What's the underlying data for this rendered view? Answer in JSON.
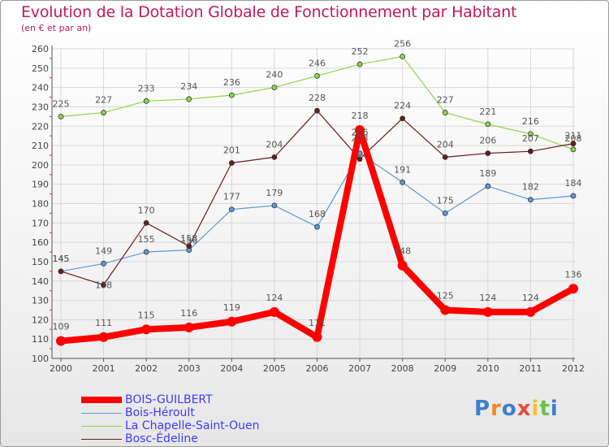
{
  "chart_data": {
    "type": "line",
    "title": "Evolution de la Dotation Globale de Fonctionnement par Habitant",
    "subtitle": "(en € et par an)",
    "xlabel": "",
    "ylabel": "",
    "ylim": [
      100,
      260
    ],
    "yticks": [
      100,
      110,
      120,
      130,
      140,
      150,
      160,
      170,
      180,
      190,
      200,
      210,
      220,
      230,
      240,
      250,
      260
    ],
    "categories": [
      "2000",
      "2001",
      "2002",
      "2003",
      "2004",
      "2005",
      "2006",
      "2007",
      "2008",
      "2009",
      "2010",
      "2011",
      "2012"
    ],
    "series": [
      {
        "name": "BOIS-GUILBERT",
        "color": "#ff0000",
        "values": [
          109,
          111,
          115,
          116,
          119,
          124,
          111,
          218,
          148,
          125,
          124,
          124,
          136
        ]
      },
      {
        "name": "Bois-Héroult",
        "color": "#5b9bd5",
        "values": [
          145,
          149,
          155,
          156,
          177,
          179,
          168,
          206,
          191,
          175,
          189,
          182,
          184
        ]
      },
      {
        "name": "La Chapelle-Saint-Ouen",
        "color": "#8ed64a",
        "values": [
          225,
          227,
          233,
          234,
          236,
          240,
          246,
          252,
          256,
          227,
          221,
          216,
          208
        ]
      },
      {
        "name": "Bosc-Édeline",
        "color": "#6b1a1a",
        "values": [
          145,
          138,
          170,
          158,
          201,
          204,
          228,
          203,
          224,
          204,
          206,
          207,
          211
        ]
      }
    ],
    "legend_position": "bottom-left"
  },
  "brand": {
    "letters": [
      "P",
      "r",
      "o",
      "x",
      "i",
      "t",
      "i"
    ]
  }
}
